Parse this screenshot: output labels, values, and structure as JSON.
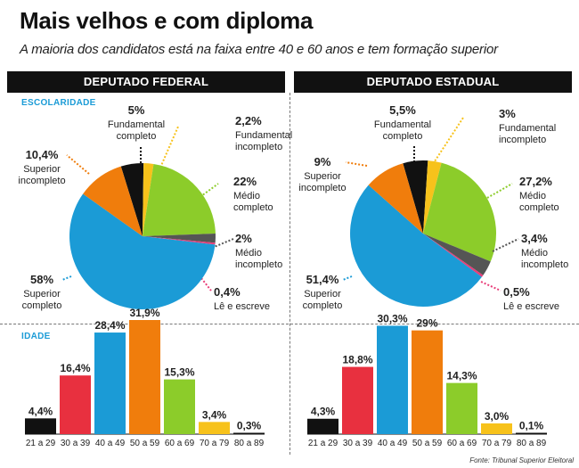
{
  "title": "Mais velhos e com diploma",
  "subtitle": "A maioria dos candidatos está na faixa entre 40 e 60 anos e tem formação superior",
  "source": "Fonte: Tribunal Superior Eleitoral",
  "colors": {
    "fundamental_completo": "#111111",
    "fundamental_incompleto": "#f7c21b",
    "medio_completo": "#8ccc2a",
    "medio_incompleto": "#555555",
    "le_e_escreve": "#e83c78",
    "superior_completo": "#1b9bd6",
    "superior_incompleto": "#f07d0c",
    "age_21_29": "#111111",
    "age_30_39": "#e8303f",
    "age_40_49": "#1b9bd6",
    "age_50_59": "#f07d0c",
    "age_60_69": "#8ccc2a",
    "age_70_79": "#f7c21b",
    "age_80_89": "#111111"
  },
  "panels": {
    "federal": {
      "header": "DEPUTADO FEDERAL",
      "escolaridade_label": "ESCOLARIDADE",
      "idade_label": "IDADE"
    },
    "estadual": {
      "header": "DEPUTADO ESTADUAL"
    }
  },
  "chart_data": [
    {
      "type": "pie",
      "panel": "DEPUTADO FEDERAL",
      "section": "ESCOLARIDADE",
      "slices": [
        {
          "label": "Fundamental completo",
          "value": 5,
          "value_label": "5%"
        },
        {
          "label": "Fundamental incompleto",
          "value": 2.2,
          "value_label": "2,2%"
        },
        {
          "label": "Médio completo",
          "value": 22,
          "value_label": "22%"
        },
        {
          "label": "Médio incompleto",
          "value": 2,
          "value_label": "2%"
        },
        {
          "label": "Lê e escreve",
          "value": 0.4,
          "value_label": "0,4%"
        },
        {
          "label": "Superior completo",
          "value": 58,
          "value_label": "58%"
        },
        {
          "label": "Superior incompleto",
          "value": 10.4,
          "value_label": "10,4%"
        }
      ]
    },
    {
      "type": "pie",
      "panel": "DEPUTADO ESTADUAL",
      "section": "ESCOLARIDADE",
      "slices": [
        {
          "label": "Fundamental completo",
          "value": 5.5,
          "value_label": "5,5%"
        },
        {
          "label": "Fundamental incompleto",
          "value": 3,
          "value_label": "3%"
        },
        {
          "label": "Médio completo",
          "value": 27.2,
          "value_label": "27,2%"
        },
        {
          "label": "Médio incompleto",
          "value": 3.4,
          "value_label": "3,4%"
        },
        {
          "label": "Lê e escreve",
          "value": 0.5,
          "value_label": "0,5%"
        },
        {
          "label": "Superior completo",
          "value": 51.4,
          "value_label": "51,4%"
        },
        {
          "label": "Superior incompleto",
          "value": 9,
          "value_label": "9%"
        }
      ]
    },
    {
      "type": "bar",
      "panel": "DEPUTADO FEDERAL",
      "section": "IDADE",
      "categories": [
        "21 a 29",
        "30 a 39",
        "40 a 49",
        "50 a 59",
        "60 a 69",
        "70 a 79",
        "80 a 89"
      ],
      "values": [
        4.4,
        16.4,
        28.4,
        31.9,
        15.3,
        3.4,
        0.3
      ],
      "value_labels": [
        "4,4%",
        "16,4%",
        "28,4%",
        "31,9%",
        "15,3%",
        "3,4%",
        "0,3%"
      ]
    },
    {
      "type": "bar",
      "panel": "DEPUTADO ESTADUAL",
      "section": "IDADE",
      "categories": [
        "21 a 29",
        "30 a 39",
        "40 a 49",
        "50 a 59",
        "60 a 69",
        "70 a 79",
        "80 a 89"
      ],
      "values": [
        4.3,
        18.8,
        30.3,
        29,
        14.3,
        3.0,
        0.1
      ],
      "value_labels": [
        "4,3%",
        "18,8%",
        "30,3%",
        "29%",
        "14,3%",
        "3,0%",
        "0,1%"
      ]
    }
  ]
}
